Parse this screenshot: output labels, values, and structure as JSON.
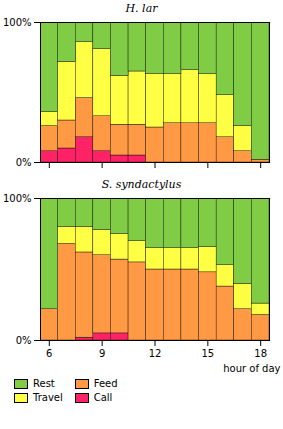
{
  "chart_data": [
    {
      "type": "bar",
      "stacked": true,
      "title": "H. lar",
      "x": [
        6,
        7,
        8,
        9,
        10,
        11,
        12,
        13,
        14,
        15,
        16,
        17,
        18
      ],
      "series": [
        {
          "name": "Call",
          "color": "#ff2266",
          "values": [
            8,
            10,
            18,
            8,
            5,
            5,
            0,
            0,
            0,
            0,
            0,
            0,
            0
          ]
        },
        {
          "name": "Feed",
          "color": "#ff9944",
          "values": [
            18,
            20,
            28,
            25,
            22,
            22,
            25,
            28,
            28,
            28,
            18,
            8,
            2
          ]
        },
        {
          "name": "Travel",
          "color": "#ffff44",
          "values": [
            10,
            42,
            40,
            48,
            35,
            38,
            38,
            35,
            38,
            35,
            30,
            18,
            0
          ]
        },
        {
          "name": "Rest",
          "color": "#80cc44",
          "values": [
            64,
            28,
            14,
            19,
            38,
            35,
            37,
            37,
            34,
            37,
            52,
            74,
            98
          ]
        }
      ],
      "xlim": [
        5.5,
        18.5
      ],
      "xticks": [
        6,
        9,
        12,
        15,
        18
      ],
      "ylim": [
        0,
        100
      ],
      "yticks": [
        {
          "value": 0,
          "label": "0%"
        },
        {
          "value": 100,
          "label": "100%"
        }
      ],
      "grid": false,
      "tick_labels": "y"
    },
    {
      "type": "bar",
      "stacked": true,
      "title": "S. syndactylus",
      "xlabel": "hour of day",
      "x": [
        6,
        7,
        8,
        9,
        10,
        11,
        12,
        13,
        14,
        15,
        16,
        17,
        18
      ],
      "series": [
        {
          "name": "Call",
          "color": "#ff2266",
          "values": [
            0,
            0,
            2,
            5,
            5,
            0,
            0,
            0,
            0,
            0,
            0,
            0,
            0
          ]
        },
        {
          "name": "Feed",
          "color": "#ff9944",
          "values": [
            22,
            68,
            60,
            55,
            52,
            55,
            50,
            50,
            50,
            48,
            38,
            22,
            18
          ]
        },
        {
          "name": "Travel",
          "color": "#ffff44",
          "values": [
            0,
            12,
            18,
            18,
            18,
            15,
            15,
            15,
            15,
            18,
            15,
            18,
            8
          ]
        },
        {
          "name": "Rest",
          "color": "#80cc44",
          "values": [
            78,
            20,
            20,
            22,
            25,
            30,
            35,
            35,
            35,
            34,
            47,
            60,
            74
          ]
        }
      ],
      "xlim": [
        5.5,
        18.5
      ],
      "xticks": [
        6,
        9,
        12,
        15,
        18
      ],
      "ylim": [
        0,
        100
      ],
      "yticks": [
        {
          "value": 0,
          "label": "0%"
        },
        {
          "value": 100,
          "label": "100%"
        }
      ],
      "grid": false,
      "legend": "lower left"
    }
  ]
}
